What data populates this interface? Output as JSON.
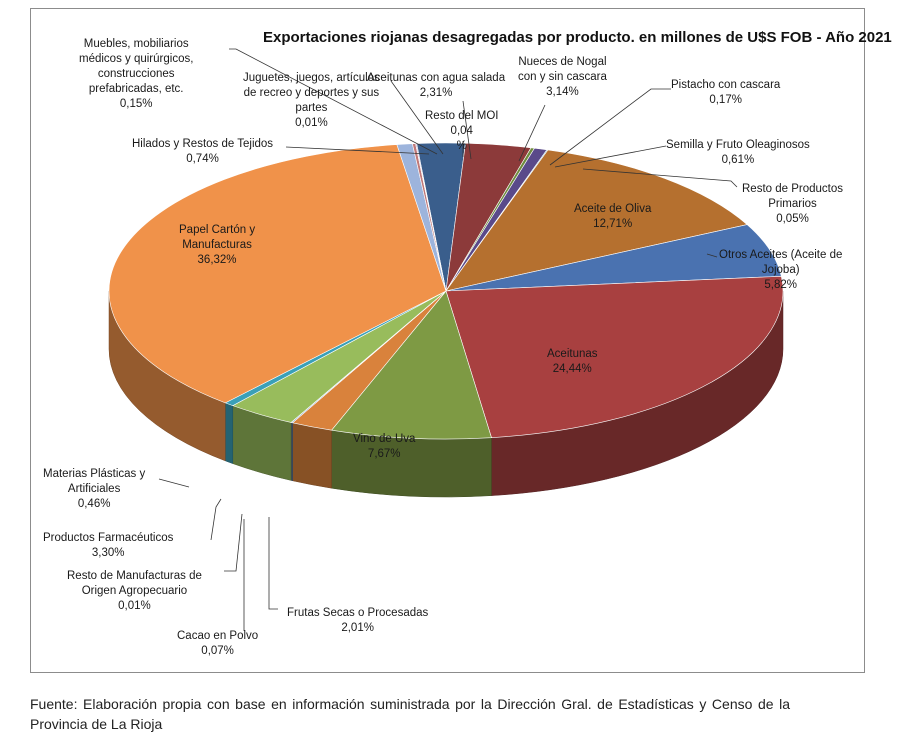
{
  "chart_data": {
    "type": "pie",
    "title": "Exportaciones riojanas desagregadas por producto. en millones de U$S FOB - Año 2021",
    "slices": [
      {
        "name": "Aceitunas con agua salada",
        "percent_label": "2,31%",
        "value": 2.31,
        "color": "#3a5e8c"
      },
      {
        "name": "Nueces de Nogal\ncon y sin cascara",
        "percent_label": "3,14%",
        "value": 3.14,
        "color": "#8c3a3a"
      },
      {
        "name": "Pistacho con cascara",
        "percent_label": "0,17%",
        "value": 0.17,
        "color": "#6e8b3d"
      },
      {
        "name": "Semilla y Fruto Oleaginosos",
        "percent_label": "0,61%",
        "value": 0.61,
        "color": "#5a4a8a"
      },
      {
        "name": "Resto de Productos\nPrimarios",
        "percent_label": "0,05%",
        "value": 0.05,
        "color": "#2e8fa8"
      },
      {
        "name": "Aceite de Oliva",
        "percent_label": "12,71%",
        "value": 12.71,
        "color": "#b5702f"
      },
      {
        "name": "Otros Aceites (Aceite de\nJojoba)",
        "percent_label": "5,82%",
        "value": 5.82,
        "color": "#4a72b0"
      },
      {
        "name": "Aceitunas",
        "percent_label": "24,44%",
        "value": 24.44,
        "color": "#a84040"
      },
      {
        "name": "Vino de Uva",
        "percent_label": "7,67%",
        "value": 7.67,
        "color": "#7e9a44"
      },
      {
        "name": "Frutas Secas o Procesadas",
        "percent_label": "2,01%",
        "value": 2.01,
        "color": "#d9823c"
      },
      {
        "name": "Cacao en Polvo",
        "percent_label": "0,07%",
        "value": 0.07,
        "color": "#4f7fb5"
      },
      {
        "name": "Resto de Manufacturas de\nOrigen Agropecuario",
        "percent_label": "0,01%",
        "value": 0.01,
        "color": "#9c4646"
      },
      {
        "name": "Productos Farmacéuticos",
        "percent_label": "3,30%",
        "value": 3.3,
        "color": "#98bc5c"
      },
      {
        "name": "Materias Plásticas y\nArtificiales",
        "percent_label": "0,46%",
        "value": 0.46,
        "color": "#3aa0b8"
      },
      {
        "name": "Papel Cartón y\nManufacturas",
        "percent_label": "36,32%",
        "value": 36.32,
        "color": "#f0924a"
      },
      {
        "name": "Hilados y Restos de Tejidos",
        "percent_label": "0,74%",
        "value": 0.74,
        "color": "#9db4dc"
      },
      {
        "name": "Muebles, mobiliarios\nmédicos y quirúrgicos,\nconstrucciones\nprefabricadas, etc.",
        "percent_label": "0,15%",
        "value": 0.15,
        "color": "#c07878"
      },
      {
        "name": "Juguetes, juegos, artículos\nde recreo y deportes y sus\npartes",
        "percent_label": "0,01%",
        "value": 0.01,
        "color": "#a0c070"
      },
      {
        "name": "Resto del MOI",
        "percent_label": "0,04\n%",
        "value": 0.04,
        "color": "#7a66a8"
      }
    ]
  },
  "source_note": "Fuente: Elaboración propia con base en información suministrada por la Dirección Gral. de Estadísticas y Censo de la Provincia de La Rioja"
}
